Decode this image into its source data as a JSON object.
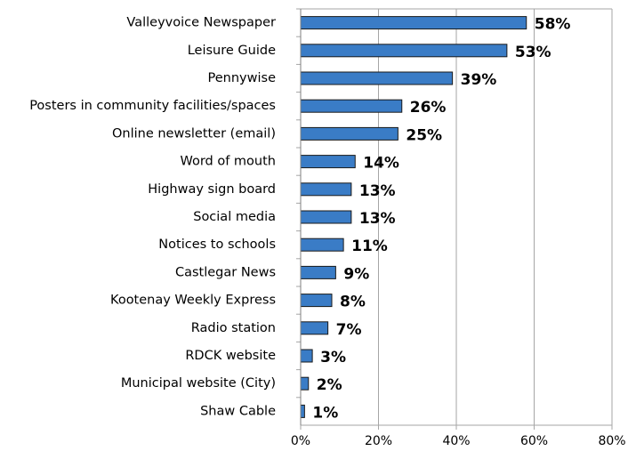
{
  "chart_data": {
    "type": "bar",
    "horizontal": true,
    "categories": [
      "Valleyvoice Newspaper",
      "Leisure Guide",
      "Pennywise",
      "Posters in community facilities/spaces",
      "Online newsletter (email)",
      "Word of mouth",
      "Highway sign board",
      "Social media",
      "Notices to schools",
      "Castlegar News",
      "Kootenay Weekly Express",
      "Radio station",
      "RDCK website",
      "Municipal website (City)",
      "Shaw Cable"
    ],
    "values": [
      58,
      53,
      39,
      26,
      25,
      14,
      13,
      13,
      11,
      9,
      8,
      7,
      3,
      2,
      1
    ],
    "value_labels": [
      "58%",
      "53%",
      "39%",
      "26%",
      "25%",
      "14%",
      "13%",
      "13%",
      "11%",
      "9%",
      "8%",
      "7%",
      "3%",
      "2%",
      "1%"
    ],
    "color": "#3a7cc6",
    "xlim": [
      0,
      80
    ],
    "xticks": [
      {
        "value": 0,
        "label": "0%"
      },
      {
        "value": 20,
        "label": "20%"
      },
      {
        "value": 40,
        "label": "40%"
      },
      {
        "value": 60,
        "label": "60%"
      },
      {
        "value": 80,
        "label": "80%"
      }
    ],
    "grid": true
  }
}
